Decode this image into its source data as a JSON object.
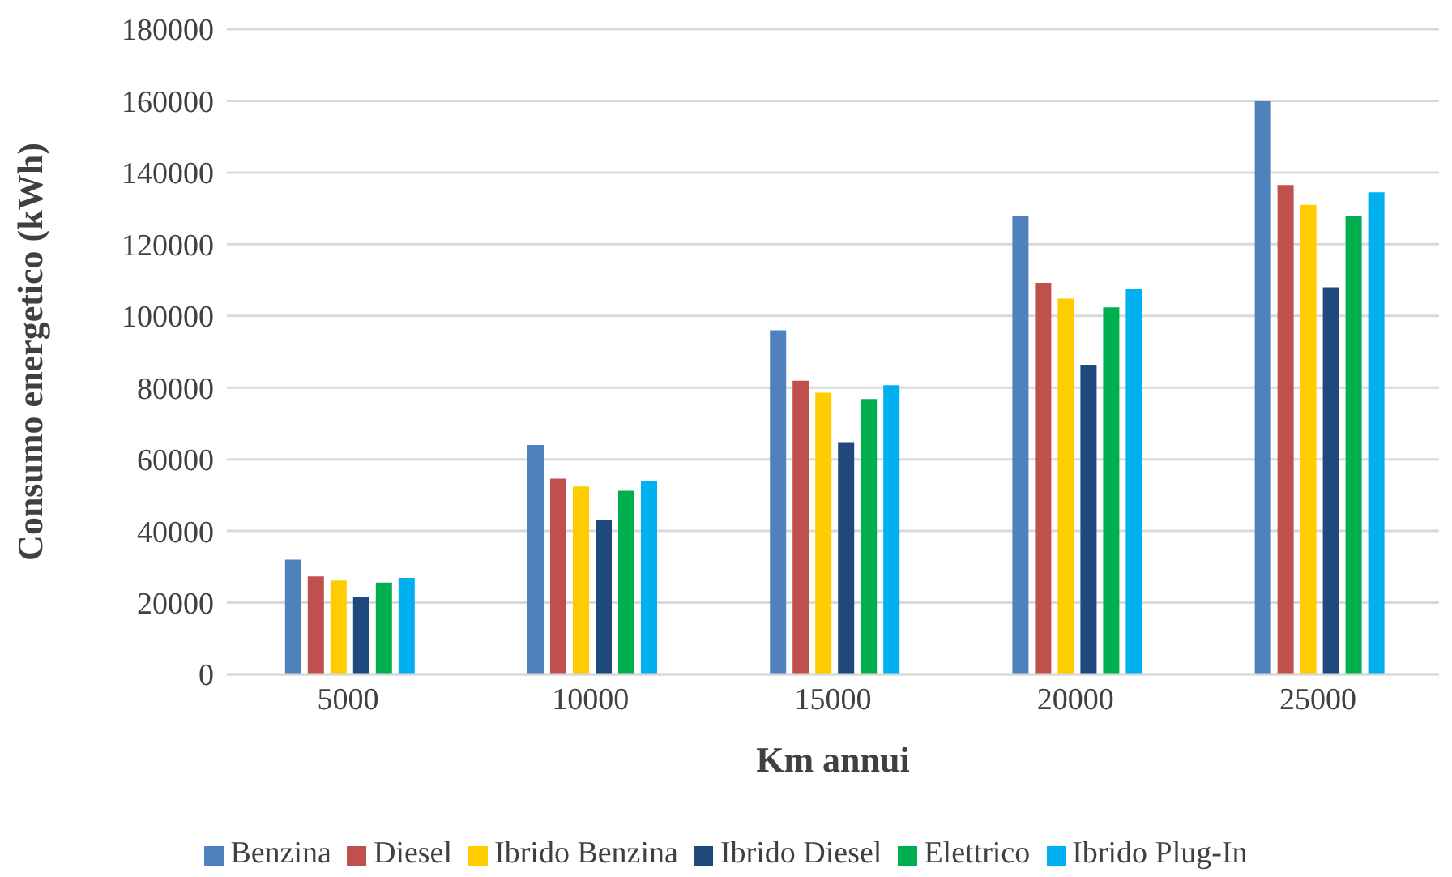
{
  "chart_data": {
    "type": "bar",
    "xlabel": "Km annui",
    "ylabel": "Consumo energetico (kWh)",
    "categories": [
      "5000",
      "10000",
      "15000",
      "20000",
      "25000"
    ],
    "series": [
      {
        "name": "Benzina",
        "color": "#4f81bd",
        "values": [
          32000,
          64000,
          96000,
          128000,
          160000
        ]
      },
      {
        "name": "Diesel",
        "color": "#c0504d",
        "values": [
          27300,
          54600,
          81900,
          109200,
          136500
        ]
      },
      {
        "name": "Ibrido Benzina",
        "color": "#ffcc00",
        "values": [
          26200,
          52400,
          78600,
          104800,
          131000
        ]
      },
      {
        "name": "Ibrido Diesel",
        "color": "#1f497d",
        "values": [
          21600,
          43200,
          64800,
          86400,
          108000
        ]
      },
      {
        "name": "Elettrico",
        "color": "#00b050",
        "values": [
          25600,
          51200,
          76800,
          102400,
          128000
        ]
      },
      {
        "name": "Ibrido Plug-In",
        "color": "#00b0f0",
        "values": [
          26900,
          53800,
          80700,
          107600,
          134500
        ]
      }
    ],
    "ylim": [
      0,
      180000
    ],
    "yticks": [
      0,
      20000,
      40000,
      60000,
      80000,
      100000,
      120000,
      140000,
      160000,
      180000
    ],
    "grid": "y",
    "legend": "bottom"
  }
}
